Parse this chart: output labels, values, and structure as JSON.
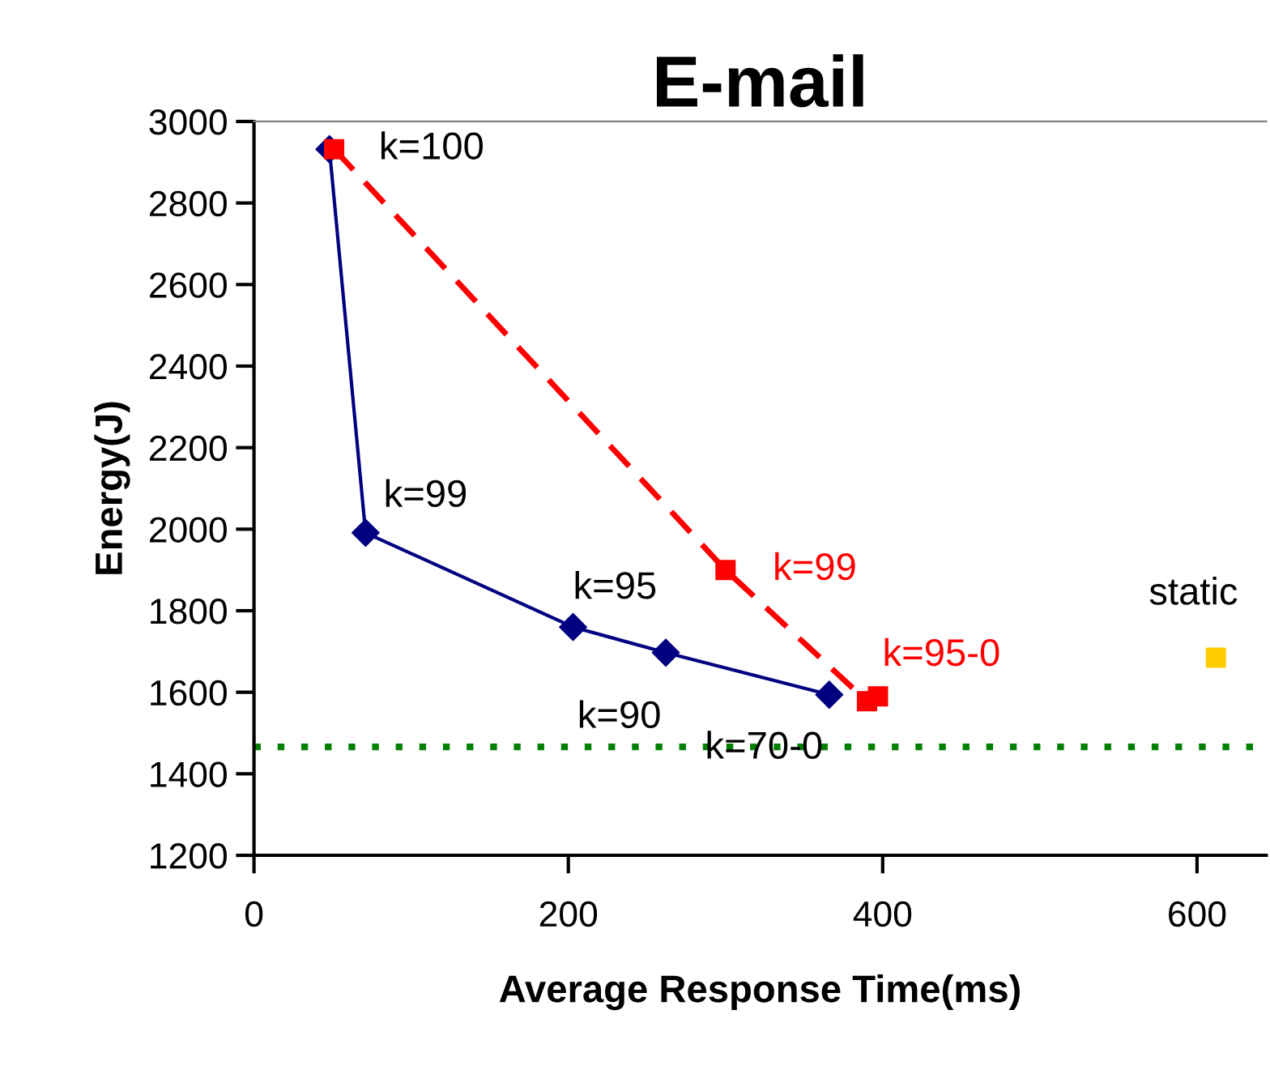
{
  "chart_data": {
    "type": "line",
    "title": "E-mail",
    "xlabel": "Average Response Time(ms)",
    "ylabel": "Energy(J)",
    "xlim": [
      0,
      644
    ],
    "xticks": [
      0,
      200,
      400,
      600
    ],
    "ylim": [
      1200,
      3000
    ],
    "yticks": [
      1200,
      1400,
      1600,
      1800,
      2000,
      2200,
      2400,
      2600,
      2800,
      3000
    ],
    "grid": false,
    "legend": false,
    "series": [
      {
        "color": "#000080",
        "marker": "diamond",
        "line_style": "solid",
        "x": [
          48,
          71,
          203,
          262,
          366
        ],
        "values": [
          2932,
          1991,
          1760,
          1697,
          1594
        ]
      },
      {
        "color": "#ff0000",
        "marker": "square",
        "line_style": "dashed",
        "x": [
          51,
          300,
          390,
          397
        ],
        "values": [
          2932,
          1900,
          1578,
          1590
        ]
      },
      {
        "type": "scatter",
        "color": "#ffcc00",
        "marker": "square",
        "x": [
          612
        ],
        "values": [
          1685
        ]
      }
    ],
    "ref_lines": [
      {
        "axis": "y",
        "value": 1466,
        "color": "#008000",
        "line_style": "dotted"
      }
    ],
    "annotations": [
      {
        "text": "k=100",
        "x": 48,
        "y": 2932
      },
      {
        "text": "k=99",
        "x": 71,
        "y": 1991
      },
      {
        "text": "k=95",
        "x": 203,
        "y": 1760
      },
      {
        "text": "k=90",
        "x": 262,
        "y": 1697
      },
      {
        "text": "k=70-0",
        "x": 366,
        "y": 1594
      },
      {
        "text": "k=99",
        "x": 300,
        "y": 1900
      },
      {
        "text": "k=95-0",
        "x": 397,
        "y": 1590
      },
      {
        "text": "static",
        "x": 612,
        "y": 1685
      }
    ]
  }
}
